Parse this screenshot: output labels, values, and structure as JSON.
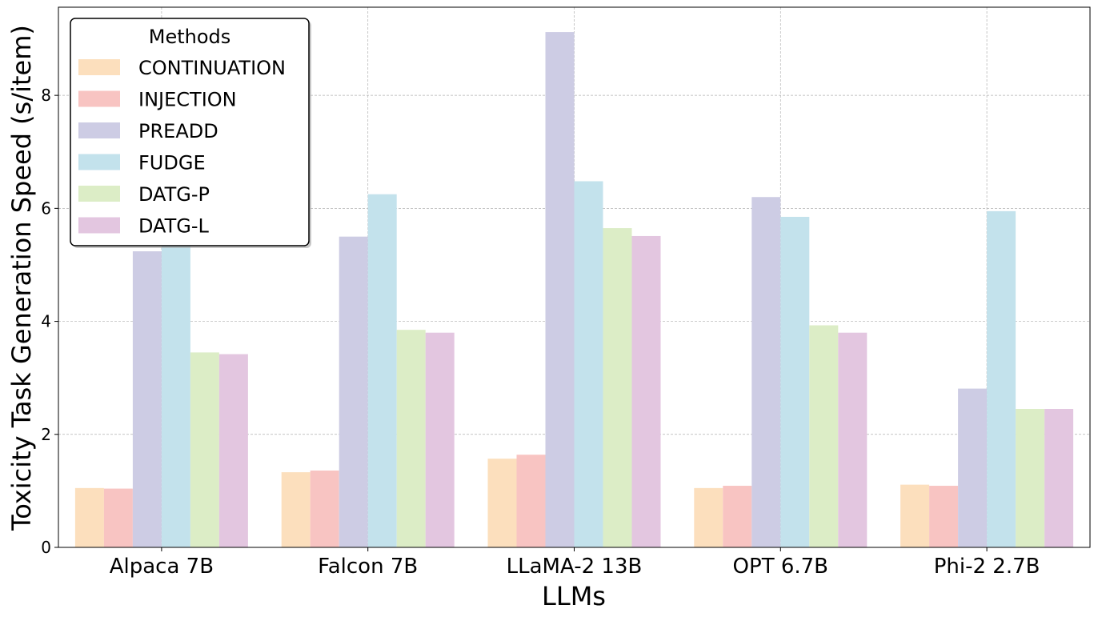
{
  "chart_data": {
    "type": "bar",
    "xlabel": "LLMs",
    "ylabel": "Toxicity Task Generation Speed (s/item)",
    "categories": [
      "Alpaca 7B",
      "Falcon 7B",
      "LLaMA-2 13B",
      "OPT 6.7B",
      "Phi-2 2.7B"
    ],
    "ylim": [
      0,
      9.56
    ],
    "yticks": [
      0,
      2,
      4,
      6,
      8
    ],
    "grid": true,
    "legend": {
      "title": "Methods",
      "placement": "top-left"
    },
    "series": [
      {
        "name": "CONTINUATION",
        "color": "#fcdfbd",
        "values": [
          1.05,
          1.33,
          1.57,
          1.05,
          1.11
        ]
      },
      {
        "name": "INJECTION",
        "color": "#f8c4c2",
        "values": [
          1.04,
          1.36,
          1.64,
          1.09,
          1.09
        ]
      },
      {
        "name": "PREADD",
        "color": "#cdcce4",
        "values": [
          5.24,
          5.5,
          9.12,
          6.2,
          2.81
        ]
      },
      {
        "name": "FUDGE",
        "color": "#c3e2ec",
        "values": [
          5.4,
          6.25,
          6.48,
          5.85,
          5.95
        ]
      },
      {
        "name": "DATG-P",
        "color": "#dcedc6",
        "values": [
          3.45,
          3.85,
          5.65,
          3.93,
          2.45
        ]
      },
      {
        "name": "DATG-L",
        "color": "#e3c6e0",
        "values": [
          3.42,
          3.8,
          5.51,
          3.8,
          2.45
        ]
      }
    ]
  }
}
